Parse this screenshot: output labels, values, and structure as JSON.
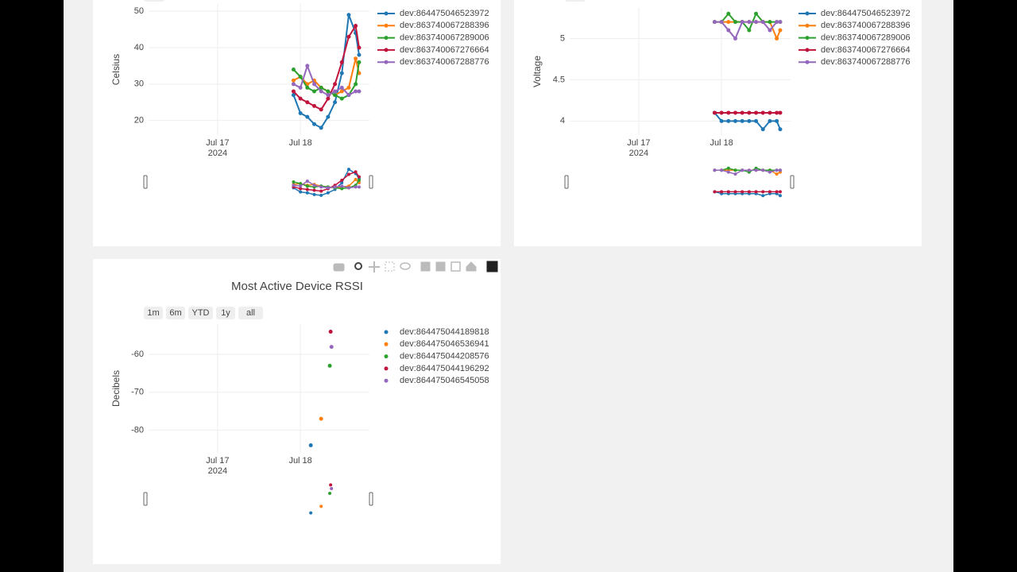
{
  "chart_data": [
    {
      "type": "line",
      "y_label": "Celsius",
      "x": [
        "2024-07-17T22:00",
        "2024-07-18T00:00",
        "2024-07-18T02:00",
        "2024-07-18T04:00",
        "2024-07-18T06:00",
        "2024-07-18T08:00",
        "2024-07-18T10:00",
        "2024-07-18T12:00",
        "2024-07-18T14:00",
        "2024-07-18T16:00",
        "2024-07-18T17:00"
      ],
      "series": [
        {
          "name": "dev:864475046523972",
          "color": "#1f77b4",
          "values": [
            27,
            22,
            21,
            19,
            18,
            21,
            25,
            33,
            49,
            44,
            38
          ]
        },
        {
          "name": "dev:863740067288396",
          "color": "#ff7f0e",
          "values": [
            31,
            32,
            30,
            31,
            29,
            28,
            27,
            28,
            29,
            37,
            33
          ]
        },
        {
          "name": "dev:863740067289006",
          "color": "#2ca02c",
          "values": [
            34,
            32,
            29,
            28,
            29,
            28,
            27,
            26,
            27,
            30,
            36
          ]
        },
        {
          "name": "dev:863740067276664",
          "color": "#c0143c",
          "values": [
            28,
            26,
            25,
            24,
            23,
            26,
            30,
            36,
            43,
            46,
            40
          ]
        },
        {
          "name": "dev:863740067288776",
          "color": "#9467bd",
          "values": [
            30,
            29,
            35,
            30,
            28,
            27,
            28,
            29,
            27,
            28,
            28
          ]
        }
      ],
      "xlim": [
        "2024-07-16T04:00",
        "2024-07-18T20:00"
      ],
      "xticks": [
        {
          "value": "2024-07-17T00:00",
          "label": "Jul 17\n2024"
        },
        {
          "value": "2024-07-18T00:00",
          "label": "Jul 18"
        }
      ],
      "ylim": [
        16,
        52
      ],
      "yticks": [
        20,
        30,
        40,
        50
      ],
      "grid": true
    },
    {
      "type": "line",
      "y_label": "Voltage",
      "x": [
        "2024-07-17T22:00",
        "2024-07-18T00:00",
        "2024-07-18T02:00",
        "2024-07-18T04:00",
        "2024-07-18T06:00",
        "2024-07-18T08:00",
        "2024-07-18T10:00",
        "2024-07-18T12:00",
        "2024-07-18T14:00",
        "2024-07-18T16:00",
        "2024-07-18T17:00"
      ],
      "series": [
        {
          "name": "dev:864475046523972",
          "color": "#1f77b4",
          "values": [
            4.1,
            4,
            4,
            4,
            4,
            4,
            4,
            3.9,
            4,
            4,
            3.9
          ]
        },
        {
          "name": "dev:863740067288396",
          "color": "#ff7f0e",
          "values": [
            5.2,
            5.2,
            5.2,
            5.2,
            5.2,
            5.2,
            5.2,
            5.2,
            5.2,
            5.0,
            5.1
          ]
        },
        {
          "name": "dev:863740067289006",
          "color": "#2ca02c",
          "values": [
            5.2,
            5.2,
            5.3,
            5.2,
            5.2,
            5.1,
            5.3,
            5.2,
            5.2,
            5.2,
            5.2
          ]
        },
        {
          "name": "dev:863740067276664",
          "color": "#c0143c",
          "values": [
            4.1,
            4.1,
            4.1,
            4.1,
            4.1,
            4.1,
            4.1,
            4.1,
            4.1,
            4.1,
            4.1
          ]
        },
        {
          "name": "dev:863740067288776",
          "color": "#9467bd",
          "values": [
            5.2,
            5.2,
            5.1,
            5.0,
            5.2,
            5.2,
            5.2,
            5.2,
            5.1,
            5.2,
            5.2
          ]
        }
      ],
      "xlim": [
        "2024-07-16T04:00",
        "2024-07-18T20:00"
      ],
      "xticks": [
        {
          "value": "2024-07-17T00:00",
          "label": "Jul 17\n2024"
        },
        {
          "value": "2024-07-18T00:00",
          "label": "Jul 18"
        }
      ],
      "ylim": [
        3.83,
        5.37
      ],
      "yticks": [
        4,
        4.5,
        5
      ],
      "grid": true
    },
    {
      "type": "scatter",
      "title": "Most Active Device RSSI",
      "y_label": "Decibels",
      "range_buttons": [
        "1m",
        "6m",
        "YTD",
        "1y",
        "all"
      ],
      "series": [
        {
          "name": "dev:864475044189818",
          "color": "#1f77b4",
          "x": [
            "2024-07-18T03:00"
          ],
          "values": [
            -84
          ]
        },
        {
          "name": "dev:864475046536941",
          "color": "#ff7f0e",
          "x": [
            "2024-07-18T06:00"
          ],
          "values": [
            -77
          ]
        },
        {
          "name": "dev:864475044208576",
          "color": "#2ca02c",
          "x": [
            "2024-07-18T08:30"
          ],
          "values": [
            -63
          ]
        },
        {
          "name": "dev:864475044196292",
          "color": "#c0143c",
          "x": [
            "2024-07-18T08:45"
          ],
          "values": [
            -54
          ]
        },
        {
          "name": "dev:864475046545058",
          "color": "#9467bd",
          "x": [
            "2024-07-18T09:00"
          ],
          "values": [
            -58
          ]
        }
      ],
      "xlim": [
        "2024-07-16T04:00",
        "2024-07-18T20:00"
      ],
      "xticks": [
        {
          "value": "2024-07-17T00:00",
          "label": "Jul 17\n2024"
        },
        {
          "value": "2024-07-18T00:00",
          "label": "Jul 18"
        }
      ],
      "ylim": [
        -86,
        -52
      ],
      "yticks": [
        -80,
        -70,
        -60
      ],
      "grid": true
    }
  ]
}
